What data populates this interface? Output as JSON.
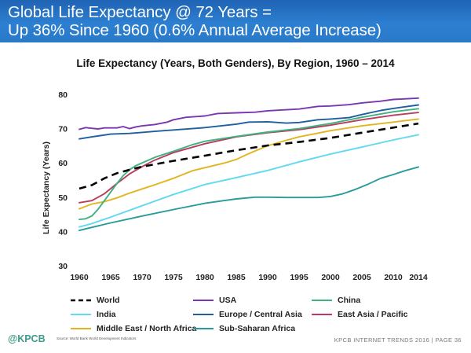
{
  "header": {
    "title_line1": "Global Life Expectancy @ 72 Years =",
    "title_line2": "Up 36% Since 1960 (0.6% Annual Average Increase)"
  },
  "footer": {
    "logo": "@KPCB",
    "source": "Source: World Bank World Development Indicators",
    "right": "KPCB INTERNET TRENDS 2016  |  PAGE 36"
  },
  "colors": {
    "header_bg": "#2a74c6",
    "World": "#000000",
    "USA": "#7a37b0",
    "China": "#3fb27f",
    "India": "#62d9f0",
    "Europe / Central Asia": "#1f5fa0",
    "East Asia / Pacific": "#b83c5c",
    "Middle East / North Africa": "#e2b41f",
    "Sub-Saharan Africa": "#2a9a9a"
  },
  "chart_data": {
    "type": "line",
    "title": "Life Expectancy (Years, Both Genders), By Region, 1960 – 2014",
    "xlabel": "",
    "ylabel": "Life Expectancy (Years)",
    "xlim": [
      1960,
      2014
    ],
    "ylim": [
      30,
      80
    ],
    "xticks": [
      1960,
      1965,
      1970,
      1975,
      1980,
      1985,
      1990,
      1995,
      2000,
      2005,
      2010,
      2014
    ],
    "yticks": [
      30,
      40,
      50,
      60,
      70,
      80
    ],
    "grid": false,
    "legend_position": "bottom",
    "series": [
      {
        "name": "World",
        "dashed": true,
        "points": [
          [
            1960,
            52.5
          ],
          [
            1962,
            53.5
          ],
          [
            1964,
            55.5
          ],
          [
            1966,
            57.0
          ],
          [
            1968,
            58.0
          ],
          [
            1970,
            58.9
          ],
          [
            1975,
            60.6
          ],
          [
            1980,
            62.1
          ],
          [
            1985,
            63.7
          ],
          [
            1990,
            65.1
          ],
          [
            1995,
            66.1
          ],
          [
            2000,
            67.3
          ],
          [
            2005,
            68.8
          ],
          [
            2010,
            70.3
          ],
          [
            2014,
            71.5
          ]
        ]
      },
      {
        "name": "USA",
        "points": [
          [
            1960,
            69.8
          ],
          [
            1961,
            70.3
          ],
          [
            1962,
            70.1
          ],
          [
            1963,
            69.9
          ],
          [
            1964,
            70.2
          ],
          [
            1965,
            70.2
          ],
          [
            1966,
            70.2
          ],
          [
            1967,
            70.6
          ],
          [
            1968,
            70.0
          ],
          [
            1969,
            70.5
          ],
          [
            1970,
            70.8
          ],
          [
            1972,
            71.2
          ],
          [
            1974,
            71.9
          ],
          [
            1975,
            72.6
          ],
          [
            1977,
            73.3
          ],
          [
            1980,
            73.7
          ],
          [
            1982,
            74.4
          ],
          [
            1985,
            74.6
          ],
          [
            1988,
            74.8
          ],
          [
            1990,
            75.2
          ],
          [
            1993,
            75.5
          ],
          [
            1995,
            75.7
          ],
          [
            1998,
            76.5
          ],
          [
            2000,
            76.6
          ],
          [
            2003,
            77.0
          ],
          [
            2005,
            77.5
          ],
          [
            2008,
            78.0
          ],
          [
            2010,
            78.5
          ],
          [
            2012,
            78.7
          ],
          [
            2014,
            78.9
          ]
        ]
      },
      {
        "name": "China",
        "points": [
          [
            1960,
            43.5
          ],
          [
            1961,
            43.7
          ],
          [
            1962,
            44.5
          ],
          [
            1963,
            46.5
          ],
          [
            1964,
            49.0
          ],
          [
            1965,
            51.5
          ],
          [
            1966,
            54.0
          ],
          [
            1967,
            56.3
          ],
          [
            1968,
            58.0
          ],
          [
            1969,
            59.2
          ],
          [
            1970,
            60.0
          ],
          [
            1972,
            61.6
          ],
          [
            1975,
            63.4
          ],
          [
            1978,
            65.3
          ],
          [
            1980,
            66.3
          ],
          [
            1985,
            67.7
          ],
          [
            1990,
            69.0
          ],
          [
            1995,
            70.0
          ],
          [
            2000,
            71.5
          ],
          [
            2005,
            73.3
          ],
          [
            2010,
            74.9
          ],
          [
            2014,
            75.8
          ]
        ]
      },
      {
        "name": "India",
        "points": [
          [
            1960,
            41.3
          ],
          [
            1962,
            42.3
          ],
          [
            1965,
            44.2
          ],
          [
            1970,
            47.5
          ],
          [
            1975,
            50.8
          ],
          [
            1980,
            53.7
          ],
          [
            1985,
            55.7
          ],
          [
            1990,
            57.8
          ],
          [
            1995,
            60.3
          ],
          [
            2000,
            62.6
          ],
          [
            2005,
            64.6
          ],
          [
            2010,
            66.7
          ],
          [
            2014,
            68.2
          ]
        ]
      },
      {
        "name": "Europe / Central Asia",
        "points": [
          [
            1960,
            67.0
          ],
          [
            1962,
            67.6
          ],
          [
            1965,
            68.4
          ],
          [
            1968,
            68.6
          ],
          [
            1970,
            68.9
          ],
          [
            1972,
            69.2
          ],
          [
            1975,
            69.6
          ],
          [
            1978,
            70.0
          ],
          [
            1980,
            70.3
          ],
          [
            1983,
            70.9
          ],
          [
            1985,
            71.3
          ],
          [
            1987,
            71.9
          ],
          [
            1990,
            72.0
          ],
          [
            1993,
            71.6
          ],
          [
            1995,
            71.8
          ],
          [
            1998,
            72.6
          ],
          [
            2000,
            72.8
          ],
          [
            2003,
            73.2
          ],
          [
            2005,
            74.1
          ],
          [
            2008,
            75.3
          ],
          [
            2010,
            75.9
          ],
          [
            2012,
            76.4
          ],
          [
            2014,
            76.9
          ]
        ]
      },
      {
        "name": "East Asia / Pacific",
        "points": [
          [
            1960,
            48.4
          ],
          [
            1962,
            49.0
          ],
          [
            1964,
            51.0
          ],
          [
            1966,
            54.0
          ],
          [
            1968,
            56.8
          ],
          [
            1970,
            58.9
          ],
          [
            1972,
            60.8
          ],
          [
            1975,
            63.0
          ],
          [
            1980,
            65.6
          ],
          [
            1985,
            67.6
          ],
          [
            1990,
            68.8
          ],
          [
            1995,
            69.7
          ],
          [
            2000,
            71.0
          ],
          [
            2005,
            72.6
          ],
          [
            2010,
            73.9
          ],
          [
            2014,
            74.7
          ]
        ]
      },
      {
        "name": "Middle East / North Africa",
        "points": [
          [
            1960,
            46.6
          ],
          [
            1962,
            48.0
          ],
          [
            1964,
            48.7
          ],
          [
            1966,
            49.8
          ],
          [
            1968,
            51.2
          ],
          [
            1970,
            52.4
          ],
          [
            1972,
            53.6
          ],
          [
            1975,
            55.5
          ],
          [
            1978,
            57.7
          ],
          [
            1980,
            58.6
          ],
          [
            1983,
            59.9
          ],
          [
            1985,
            61.0
          ],
          [
            1987,
            62.7
          ],
          [
            1990,
            65.0
          ],
          [
            1993,
            66.6
          ],
          [
            1995,
            67.6
          ],
          [
            2000,
            69.4
          ],
          [
            2005,
            70.8
          ],
          [
            2010,
            71.9
          ],
          [
            2014,
            72.8
          ]
        ]
      },
      {
        "name": "Sub-Saharan Africa",
        "points": [
          [
            1960,
            40.3
          ],
          [
            1962,
            41.2
          ],
          [
            1965,
            42.5
          ],
          [
            1970,
            44.5
          ],
          [
            1975,
            46.4
          ],
          [
            1980,
            48.2
          ],
          [
            1983,
            49.0
          ],
          [
            1985,
            49.5
          ],
          [
            1988,
            50.0
          ],
          [
            1990,
            50.0
          ],
          [
            1993,
            49.9
          ],
          [
            1995,
            49.9
          ],
          [
            1998,
            49.9
          ],
          [
            2000,
            50.2
          ],
          [
            2002,
            51.0
          ],
          [
            2004,
            52.3
          ],
          [
            2006,
            53.8
          ],
          [
            2008,
            55.5
          ],
          [
            2010,
            56.6
          ],
          [
            2012,
            57.8
          ],
          [
            2014,
            58.8
          ]
        ]
      }
    ]
  }
}
